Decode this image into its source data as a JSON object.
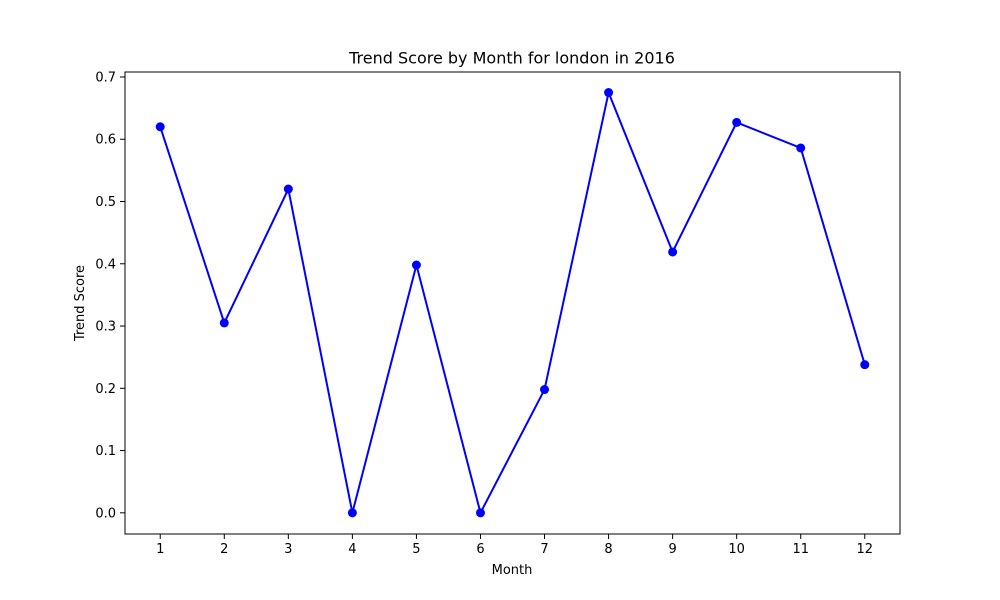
{
  "chart_data": {
    "type": "line",
    "title": "Trend Score by Month for london in 2016",
    "xlabel": "Month",
    "ylabel": "Trend Score",
    "x": [
      1,
      2,
      3,
      4,
      5,
      6,
      7,
      8,
      9,
      10,
      11,
      12
    ],
    "xticks": [
      "1",
      "2",
      "3",
      "4",
      "5",
      "6",
      "7",
      "8",
      "9",
      "10",
      "11",
      "12"
    ],
    "xlim": [
      0.45,
      12.55
    ],
    "yticks": [
      "0.0",
      "0.1",
      "0.2",
      "0.3",
      "0.4",
      "0.5",
      "0.6",
      "0.7"
    ],
    "ylim": [
      -0.034,
      0.708
    ],
    "grid": false,
    "series": [
      {
        "color": "#0000ff",
        "marker": "circle",
        "values": [
          0.62,
          0.305,
          0.52,
          0.0,
          0.398,
          0.0,
          0.198,
          0.675,
          0.419,
          0.627,
          0.586,
          0.238
        ]
      }
    ]
  }
}
